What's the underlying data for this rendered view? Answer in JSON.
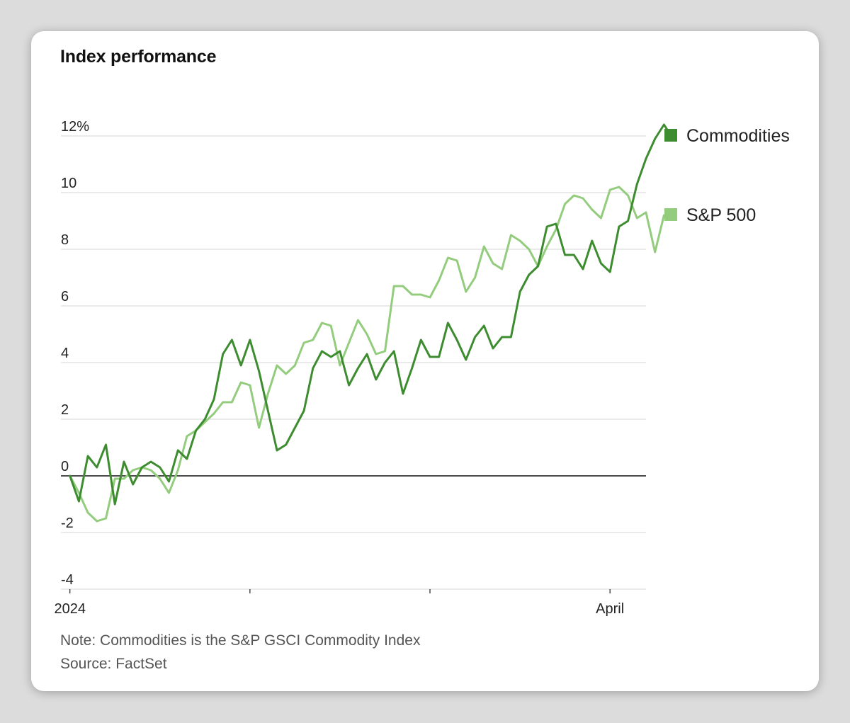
{
  "title": "Index performance",
  "note": "Note: Commodities is the S&P GSCI Commodity Index",
  "source": "Source: FactSet",
  "colors": {
    "commodities": "#3d8c2f",
    "sp500": "#94cc7e",
    "grid": "#d4d4d4",
    "zero": "#111111"
  },
  "chart_data": {
    "type": "line",
    "title": "Index performance",
    "xlabel": "",
    "ylabel": "",
    "x_range": [
      -1,
      64
    ],
    "ylim": [
      -4,
      12.5
    ],
    "y_ticks": [
      -4,
      -2,
      0,
      2,
      4,
      6,
      8,
      10,
      12
    ],
    "y_tick_labels": [
      "-4",
      "-2",
      "0",
      "2",
      "4",
      "6",
      "8",
      "10",
      "12%"
    ],
    "x_ticks": [
      {
        "x": 0,
        "label": "2024"
      },
      {
        "x": 20,
        "label": ""
      },
      {
        "x": 40,
        "label": ""
      },
      {
        "x": 60,
        "label": "April"
      }
    ],
    "legend_position": "right",
    "series": [
      {
        "name": "Commodities",
        "key": "commodities",
        "values": [
          0,
          -0.9,
          0.7,
          0.3,
          1.1,
          -1.0,
          0.5,
          -0.3,
          0.3,
          0.5,
          0.3,
          -0.2,
          0.9,
          0.6,
          1.6,
          2.0,
          2.7,
          4.3,
          4.8,
          3.9,
          4.8,
          3.7,
          2.3,
          0.9,
          1.1,
          1.7,
          2.3,
          3.8,
          4.4,
          4.2,
          4.4,
          3.2,
          3.8,
          4.3,
          3.4,
          4.0,
          4.4,
          2.9,
          3.8,
          4.8,
          4.2,
          4.2,
          5.4,
          4.8,
          4.1,
          4.9,
          5.3,
          4.5,
          4.9,
          4.9,
          6.5,
          7.1,
          7.4,
          8.8,
          8.9,
          7.8,
          7.8,
          7.3,
          8.3,
          7.5,
          7.2,
          8.8,
          9.0,
          10.3,
          11.2,
          11.9,
          12.4,
          11.9
        ]
      },
      {
        "name": "S&P 500",
        "key": "sp500",
        "values": [
          0,
          -0.6,
          -1.3,
          -1.6,
          -1.5,
          -0.1,
          -0.1,
          0.2,
          0.3,
          0.2,
          -0.1,
          -0.6,
          0.2,
          1.4,
          1.6,
          1.9,
          2.2,
          2.6,
          2.6,
          3.3,
          3.2,
          1.7,
          2.9,
          3.9,
          3.6,
          3.9,
          4.7,
          4.8,
          5.4,
          5.3,
          3.9,
          4.7,
          5.5,
          5.0,
          4.3,
          4.4,
          6.7,
          6.7,
          6.4,
          6.4,
          6.3,
          6.9,
          7.7,
          7.6,
          6.5,
          7.0,
          8.1,
          7.5,
          7.3,
          8.5,
          8.3,
          8.0,
          7.4,
          8.1,
          8.7,
          9.6,
          9.9,
          9.8,
          9.4,
          9.1,
          10.1,
          10.2,
          9.9,
          9.1,
          9.3,
          7.9,
          9.2,
          9.1
        ]
      }
    ]
  }
}
